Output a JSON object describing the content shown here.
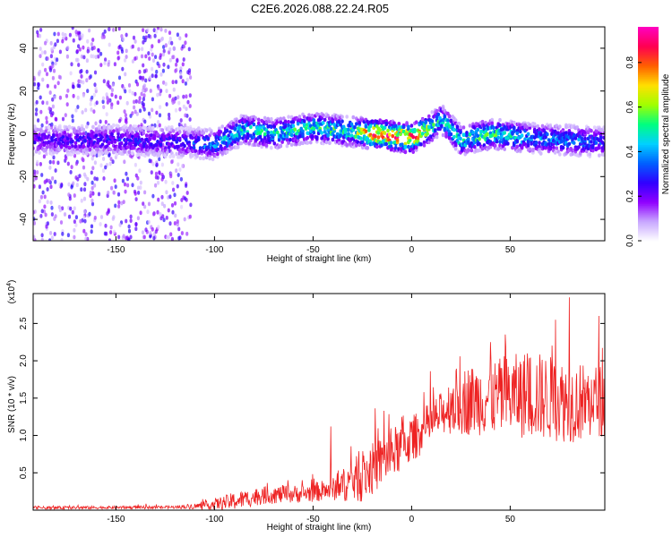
{
  "title": "C2E6.2026.088.22.24.R05",
  "chart_data": [
    {
      "type": "heatmap",
      "name": "spectrogram",
      "xlabel": "Height of straight line (km)",
      "ylabel": "Frequency (Hz)",
      "xlim": [
        -192,
        98
      ],
      "ylim": [
        -50,
        50
      ],
      "x_ticks": [
        -150,
        -100,
        -50,
        0,
        50
      ],
      "y_ticks": [
        -40,
        -20,
        0,
        20,
        40
      ],
      "colorbar": {
        "label": "Normalized spectral amplitude",
        "range": [
          0,
          0.96
        ],
        "ticks": [
          "0.0",
          "0.2",
          "0.4",
          "0.6",
          "0.8"
        ],
        "colors": [
          "#ffffff",
          "#c8a8ff",
          "#9000ff",
          "#3000ff",
          "#0060ff",
          "#00d0ff",
          "#00ff80",
          "#a0ff00",
          "#ffe000",
          "#ff6000",
          "#ff0050",
          "#ff00c0"
        ]
      },
      "ridge": [
        {
          "x": -190,
          "freq": -3,
          "amp": 0.25
        },
        {
          "x": -150,
          "freq": -3,
          "amp": 0.3
        },
        {
          "x": -115,
          "freq": -4,
          "amp": 0.3
        },
        {
          "x": -100,
          "freq": -5,
          "amp": 0.45
        },
        {
          "x": -85,
          "freq": 2,
          "amp": 0.5
        },
        {
          "x": -70,
          "freq": 0,
          "amp": 0.5
        },
        {
          "x": -50,
          "freq": 3,
          "amp": 0.55
        },
        {
          "x": -30,
          "freq": 1,
          "amp": 0.55
        },
        {
          "x": -20,
          "freq": 0,
          "amp": 0.9
        },
        {
          "x": 0,
          "freq": -2,
          "amp": 0.92
        },
        {
          "x": 10,
          "freq": 3,
          "amp": 0.6
        },
        {
          "x": 15,
          "freq": 7,
          "amp": 0.5
        },
        {
          "x": 25,
          "freq": -3,
          "amp": 0.55
        },
        {
          "x": 40,
          "freq": 0,
          "amp": 0.6
        },
        {
          "x": 60,
          "freq": -2,
          "amp": 0.45
        },
        {
          "x": 80,
          "freq": -3,
          "amp": 0.4
        },
        {
          "x": 97,
          "freq": -4,
          "amp": 0.35
        }
      ],
      "scatter_region": {
        "x_range": [
          -192,
          -112
        ],
        "freq_range": [
          -50,
          50
        ],
        "amp": 0.15
      }
    },
    {
      "type": "line",
      "name": "snr",
      "xlabel": "Height of straight line (km)",
      "ylabel": "SNR (10 * v/v)",
      "scale_label": "(x10",
      "scale_exponent": "4",
      "scale_suffix": ")",
      "color": "#ee2222",
      "xlim": [
        -192,
        98
      ],
      "ylim": [
        0,
        2.9
      ],
      "x_ticks": [
        -150,
        -100,
        -50,
        0,
        50
      ],
      "y_ticks": [
        "0.5",
        "1.0",
        "1.5",
        "2.0",
        "2.5"
      ],
      "envelope": [
        {
          "x": -192,
          "base": 0.03,
          "spread": 0.02
        },
        {
          "x": -120,
          "base": 0.04,
          "spread": 0.02
        },
        {
          "x": -105,
          "base": 0.06,
          "spread": 0.05
        },
        {
          "x": -90,
          "base": 0.12,
          "spread": 0.12
        },
        {
          "x": -75,
          "base": 0.2,
          "spread": 0.12
        },
        {
          "x": -55,
          "base": 0.22,
          "spread": 0.12
        },
        {
          "x": -40,
          "base": 0.28,
          "spread": 0.15
        },
        {
          "x": -25,
          "base": 0.45,
          "spread": 0.35
        },
        {
          "x": -10,
          "base": 0.75,
          "spread": 0.35
        },
        {
          "x": 5,
          "base": 1.05,
          "spread": 0.3
        },
        {
          "x": 18,
          "base": 1.35,
          "spread": 0.3
        },
        {
          "x": 20,
          "base": 1.45,
          "spread": 0.45
        },
        {
          "x": 40,
          "base": 1.5,
          "spread": 0.5
        },
        {
          "x": 60,
          "base": 1.55,
          "spread": 0.6
        },
        {
          "x": 80,
          "base": 1.45,
          "spread": 0.55
        },
        {
          "x": 97,
          "base": 1.45,
          "spread": 0.5
        }
      ],
      "spikes": [
        {
          "x": -41,
          "y": 1.12
        },
        {
          "x": -14,
          "y": 1.33
        },
        {
          "x": -5,
          "y": 1.25
        },
        {
          "x": 40,
          "y": 2.25
        },
        {
          "x": 73,
          "y": 2.55
        },
        {
          "x": 80,
          "y": 2.85
        },
        {
          "x": 95,
          "y": 2.6
        }
      ]
    }
  ]
}
